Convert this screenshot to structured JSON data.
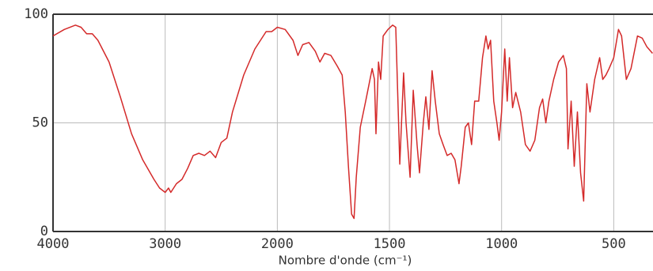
{
  "chart_data": {
    "type": "line",
    "x_label": "Nombre d'onde (cm⁻¹)",
    "xlim": [
      4000,
      325
    ],
    "x_scale_change": 2000,
    "xticks": [
      4000,
      3000,
      2000,
      1500,
      1000,
      500
    ],
    "ylim": [
      0,
      100
    ],
    "yticks": [
      0,
      50,
      100
    ],
    "grid": true,
    "series": [
      {
        "color": "#d42a2a",
        "x": [
          4000,
          3900,
          3800,
          3750,
          3700,
          3650,
          3600,
          3500,
          3400,
          3300,
          3200,
          3100,
          3050,
          3000,
          2970,
          2950,
          2900,
          2850,
          2800,
          2750,
          2700,
          2650,
          2600,
          2550,
          2500,
          2450,
          2400,
          2300,
          2200,
          2100,
          2050,
          2000,
          1965,
          1930,
          1908,
          1887,
          1859,
          1831,
          1810,
          1789,
          1761,
          1732,
          1711,
          1697,
          1683,
          1669,
          1658,
          1648,
          1630,
          1606,
          1577,
          1567,
          1560,
          1549,
          1539,
          1528,
          1507,
          1486,
          1472,
          1454,
          1437,
          1426,
          1408,
          1394,
          1377,
          1366,
          1349,
          1338,
          1324,
          1310,
          1296,
          1278,
          1261,
          1243,
          1225,
          1208,
          1190,
          1180,
          1162,
          1148,
          1134,
          1120,
          1102,
          1085,
          1070,
          1060,
          1049,
          1035,
          1021,
          1011,
          1000,
          986,
          975,
          965,
          951,
          937,
          915,
          894,
          873,
          852,
          831,
          817,
          803,
          789,
          768,
          746,
          725,
          711,
          704,
          690,
          676,
          662,
          648,
          634,
          620,
          606,
          585,
          563,
          549,
          535,
          521,
          500,
          479,
          465,
          444,
          423,
          394,
          373,
          352,
          327
        ],
        "values": [
          90,
          93,
          95,
          94,
          91,
          91,
          88,
          78,
          62,
          45,
          33,
          24,
          20,
          18,
          20,
          18,
          22,
          24,
          29,
          35,
          36,
          35,
          37,
          34,
          41,
          43,
          55,
          72,
          84,
          92,
          92,
          94,
          93,
          88,
          81,
          86,
          87,
          83,
          78,
          82,
          81,
          76,
          72,
          55,
          30,
          8,
          6,
          25,
          48,
          60,
          75,
          70,
          45,
          78,
          70,
          90,
          93,
          95,
          94,
          31,
          73,
          50,
          25,
          65,
          40,
          27,
          50,
          62,
          47,
          74,
          60,
          45,
          40,
          35,
          36,
          33,
          22,
          30,
          48,
          50,
          40,
          60,
          60,
          80,
          90,
          84,
          88,
          60,
          50,
          42,
          55,
          84,
          60,
          80,
          57,
          64,
          55,
          40,
          37,
          42,
          57,
          61,
          50,
          60,
          70,
          78,
          81,
          75,
          38,
          60,
          30,
          55,
          27,
          14,
          68,
          55,
          70,
          80,
          70,
          72,
          75,
          80,
          93,
          90,
          70,
          75,
          90,
          89,
          85,
          82
        ]
      }
    ]
  }
}
